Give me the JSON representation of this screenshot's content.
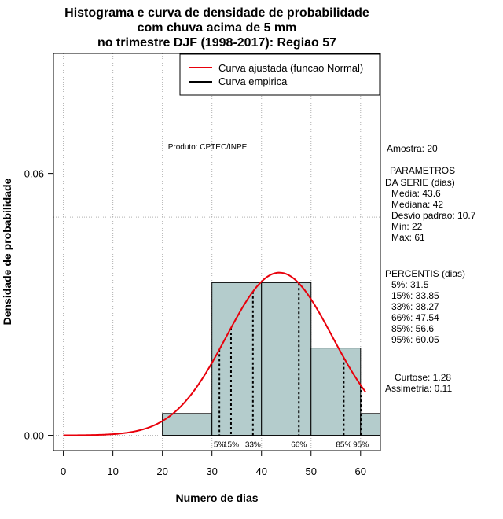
{
  "chart_data": {
    "type": "bar",
    "title_lines": [
      "Histograma e curva de densidade de probabilidade",
      "com chuva acima de 5 mm",
      "no trimestre DJF (1998-2017): Regiao 57"
    ],
    "xlabel": "Numero de dias",
    "ylabel": "Densidade de probabilidade",
    "xlim": [
      -2,
      64
    ],
    "ylim": [
      -0.0035,
      0.0875
    ],
    "x_ticks": [
      0,
      10,
      20,
      30,
      40,
      50,
      60
    ],
    "y_ticks": [
      0.0,
      0.06
    ],
    "y_tick_labels": [
      "0.00",
      "0.06"
    ],
    "gridlines_x": [
      0,
      10,
      20,
      30,
      40,
      50,
      60
    ],
    "gridlines_y": [
      0.0,
      0.05
    ],
    "histogram": {
      "bins": [
        {
          "from": 20,
          "to": 30,
          "density": 0.005
        },
        {
          "from": 30,
          "to": 40,
          "density": 0.035
        },
        {
          "from": 40,
          "to": 50,
          "density": 0.035
        },
        {
          "from": 50,
          "to": 60,
          "density": 0.02
        },
        {
          "from": 60,
          "to": 70,
          "density": 0.005
        }
      ],
      "fill": "#b4cccc"
    },
    "normal_curve": {
      "name": "Curva ajustada (funcao Normal)",
      "mean": 43.6,
      "sd": 10.7,
      "x_range": [
        0,
        61
      ],
      "color": "#e8000b"
    },
    "empirical_curve": {
      "name": "Curva empirica",
      "color": "#000000"
    },
    "percentile_lines": [
      {
        "x": 31.5,
        "label": "5%"
      },
      {
        "x": 33.85,
        "label": "15%"
      },
      {
        "x": 38.27,
        "label": "33%"
      },
      {
        "x": 47.54,
        "label": "66%"
      },
      {
        "x": 56.6,
        "label": "85%"
      },
      {
        "x": 60.05,
        "label": "95%"
      }
    ],
    "legend": {
      "position": "top-right"
    },
    "annotation": "Produto: CPTEC/INPE"
  },
  "side_panel": {
    "sample": "Amostra: 20",
    "params_title_1": "PARAMETROS",
    "params_title_2": "DA SERIE (dias)",
    "params": [
      "Media: 43.6",
      "Mediana: 42",
      "Desvio padrao: 10.7",
      "Min: 22",
      "Max: 61"
    ],
    "percentis_title": "PERCENTIS (dias)",
    "percentis": [
      "5%: 31.5",
      "15%: 33.85",
      "33%: 38.27",
      "66%: 47.54",
      "85%: 56.6",
      "95%: 60.05"
    ],
    "curtose": "Curtose: 1.28",
    "assimetria": "Assimetria: 0.11"
  }
}
